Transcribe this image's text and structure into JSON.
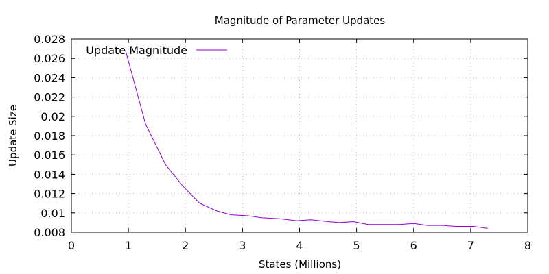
{
  "chart_data": {
    "type": "line",
    "title": "Magnitude of Parameter Updates",
    "xlabel": "States (Millions)",
    "ylabel": "Update Size",
    "xlim": [
      0,
      8
    ],
    "ylim": [
      0.008,
      0.028
    ],
    "xticks": [
      0,
      1,
      2,
      3,
      4,
      5,
      6,
      7,
      8
    ],
    "yticks": [
      0.008,
      0.01,
      0.012,
      0.014,
      0.016,
      0.018,
      0.02,
      0.022,
      0.024,
      0.026,
      0.028
    ],
    "xtick_labels": [
      "0",
      "1",
      "2",
      "3",
      "4",
      "5",
      "6",
      "7",
      "8"
    ],
    "ytick_labels": [
      "0.008",
      "0.01",
      "0.012",
      "0.014",
      "0.016",
      "0.018",
      "0.02",
      "0.022",
      "0.024",
      "0.026",
      "0.028"
    ],
    "grid": true,
    "legend_position": "top-left",
    "series": [
      {
        "name": "Update Magnitude",
        "color": "#9400d3",
        "x": [
          0.95,
          1.3,
          1.65,
          1.95,
          2.25,
          2.55,
          2.8,
          3.1,
          3.35,
          3.65,
          3.95,
          4.2,
          4.5,
          4.7,
          4.95,
          5.2,
          5.5,
          5.75,
          6.0,
          6.25,
          6.5,
          6.75,
          7.05,
          7.3
        ],
        "values": [
          0.0268,
          0.0192,
          0.015,
          0.0128,
          0.011,
          0.0102,
          0.0098,
          0.0097,
          0.0095,
          0.0094,
          0.0092,
          0.0093,
          0.0091,
          0.009,
          0.0091,
          0.0088,
          0.0088,
          0.0088,
          0.0089,
          0.0087,
          0.0087,
          0.0086,
          0.0086,
          0.0084
        ]
      }
    ]
  }
}
